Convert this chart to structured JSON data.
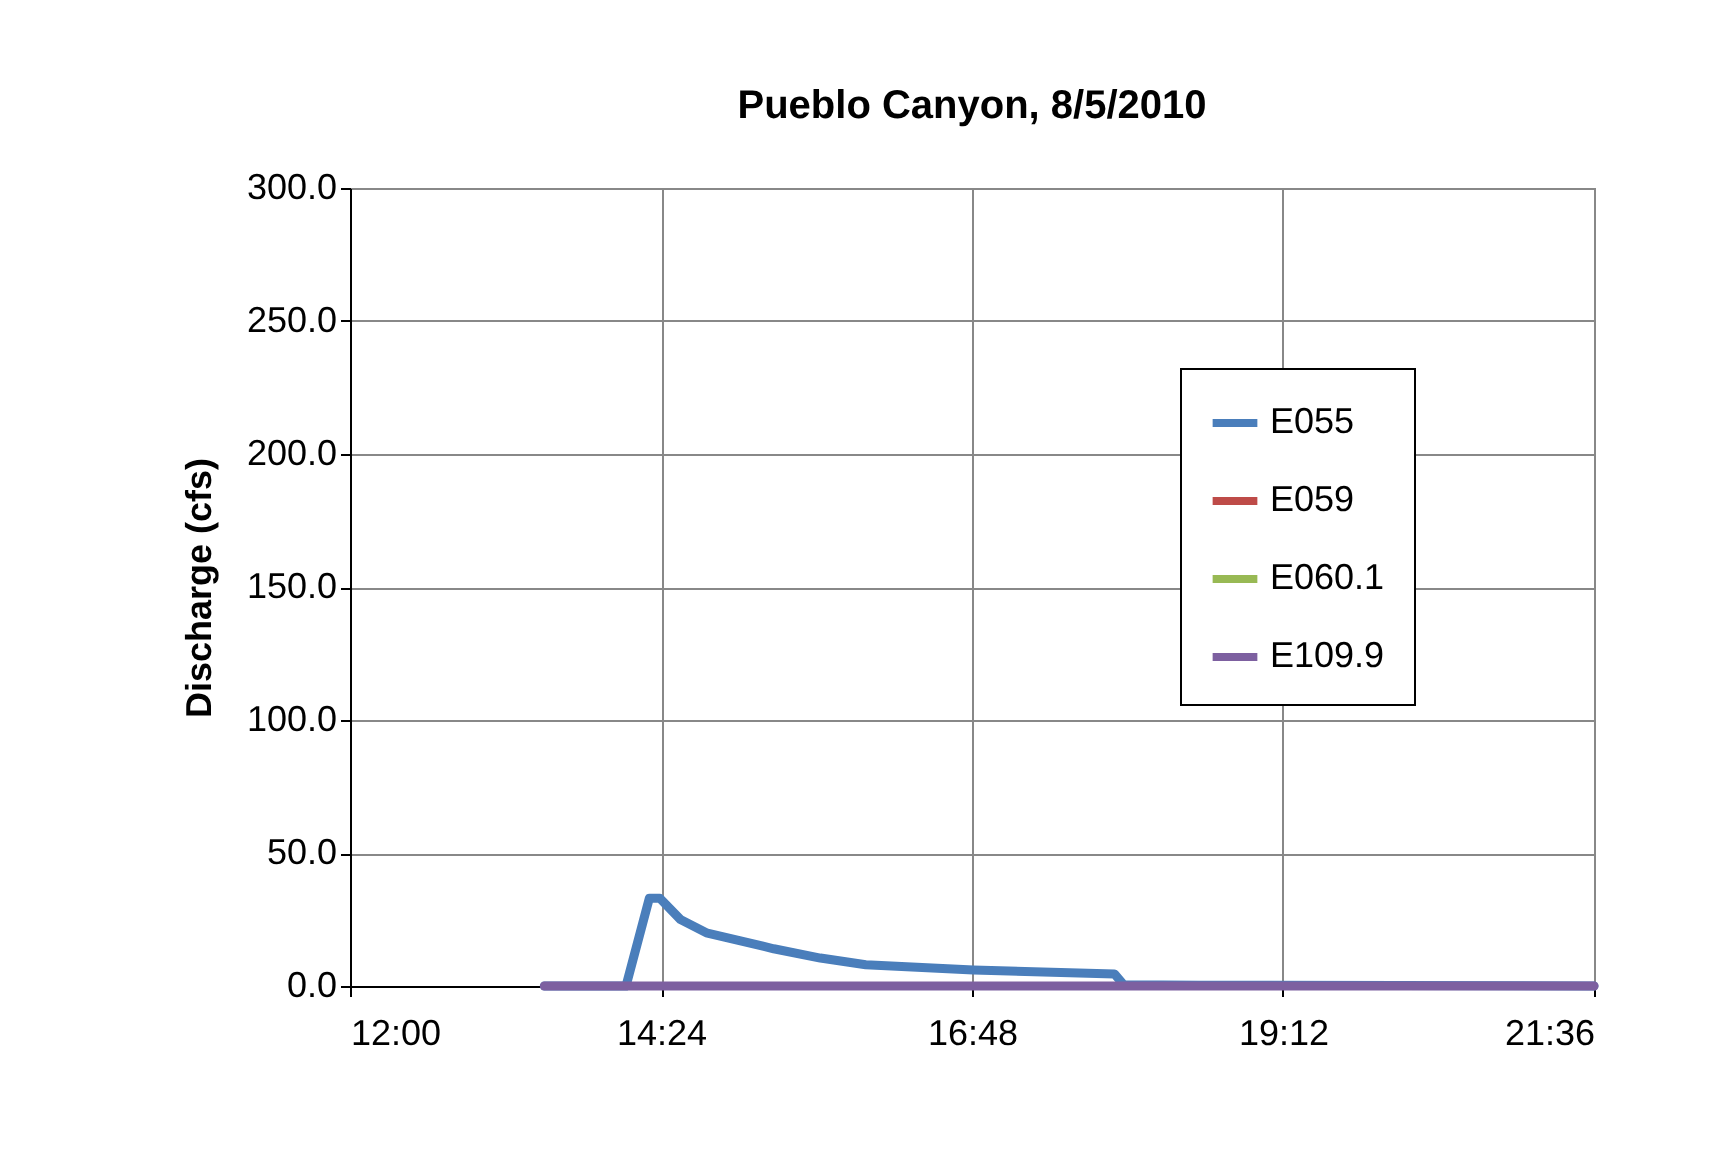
{
  "chart_data": {
    "type": "line",
    "title": "Pueblo Canyon, 8/5/2010",
    "ylabel": "Discharge (cfs)",
    "xlim": [
      12,
      21.6
    ],
    "xticks": [
      {
        "value": 12,
        "label": "12:00"
      },
      {
        "value": 14.4,
        "label": "14:24"
      },
      {
        "value": 16.8,
        "label": "16:48"
      },
      {
        "value": 19.2,
        "label": "19:12"
      },
      {
        "value": 21.6,
        "label": "21:36"
      }
    ],
    "ylim": [
      0,
      300
    ],
    "yticks": [
      {
        "value": 0,
        "label": "0.0"
      },
      {
        "value": 50,
        "label": "50.0"
      },
      {
        "value": 100,
        "label": "100.0"
      },
      {
        "value": 150,
        "label": "150.0"
      },
      {
        "value": 200,
        "label": "200.0"
      },
      {
        "value": 250,
        "label": "250.0"
      },
      {
        "value": 300,
        "label": "300.0"
      }
    ],
    "grid": true,
    "legend": "top right",
    "series": [
      {
        "name": "E055",
        "color": "#4a7ebb",
        "x": [
          13.5,
          14.13,
          14.31,
          14.39,
          14.55,
          14.75,
          15.27,
          15.63,
          15.98,
          16.81,
          17.9,
          17.97,
          18.56,
          21.6
        ],
        "values": [
          0,
          0,
          33,
          33,
          25,
          20,
          14,
          10.5,
          8,
          6,
          4.5,
          0.5,
          0.3,
          0
        ]
      },
      {
        "name": "E059",
        "color": "#be4b48"
      },
      {
        "name": "E060.1",
        "color": "#98b954"
      },
      {
        "name": "E109.9",
        "color": "#7d60a0",
        "x": [
          13.5,
          21.6
        ],
        "values": [
          0,
          0
        ]
      }
    ]
  }
}
